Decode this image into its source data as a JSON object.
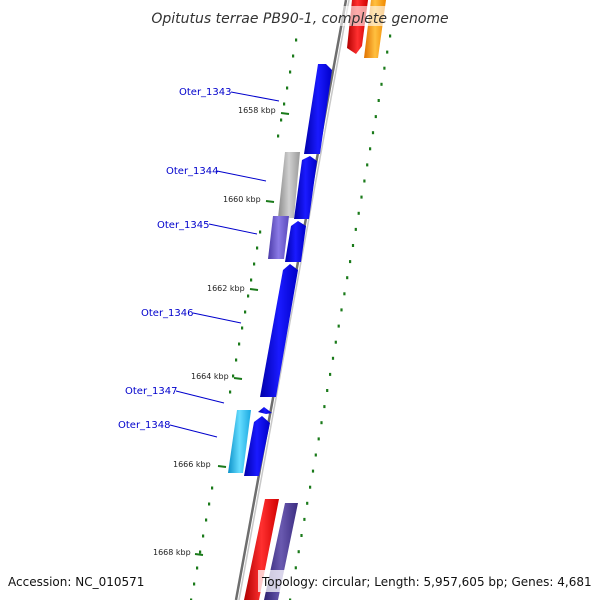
{
  "title": "Opitutus terrae PB90-1, complete genome",
  "footer": {
    "accession": "Accession: NC_010571",
    "topology": "Topology: circular; Length: 5,957,605 bp; Genes: 4,681"
  },
  "kbp_labels": [
    "1658 kbp",
    "1660 kbp",
    "1662 kbp",
    "1664 kbp",
    "1666 kbp",
    "1668 kbp"
  ],
  "gene_labels": [
    "Oter_1343",
    "Oter_1344",
    "Oter_1345",
    "Oter_1346",
    "Oter_1347",
    "Oter_1348"
  ],
  "colors": {
    "backbone": "#8c8c8c",
    "tick": "#1a7a1a",
    "gene_blue": "#0000ee",
    "gene_gray": "#a8a8a8",
    "gene_purple": "#6a5acd",
    "gene_cyan": "#29b6e6",
    "gene_red": "#ee0000",
    "gene_orange": "#ff9900",
    "gene_darkpurple": "#4b3b8c"
  }
}
